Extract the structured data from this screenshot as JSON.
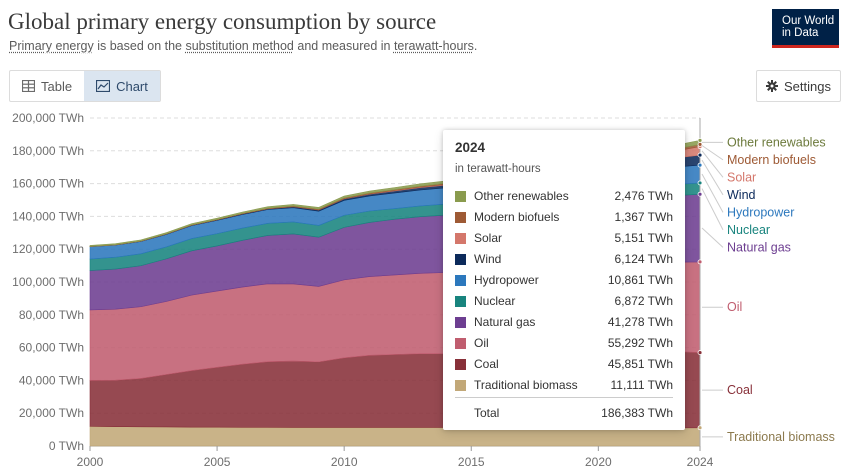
{
  "header": {
    "title": "Global primary energy consumption by source",
    "subtitle_pre": "",
    "subtitle_link1": "Primary energy",
    "subtitle_mid1": " is based on the ",
    "subtitle_link2": "substitution method",
    "subtitle_mid2": " and measured in ",
    "subtitle_link3": "terawatt-hours",
    "subtitle_end": "."
  },
  "logo": {
    "line1": "Our World",
    "line2": "in Data"
  },
  "tabs": [
    {
      "label": "Table",
      "icon": "table-icon",
      "active": false
    },
    {
      "label": "Chart",
      "icon": "chart-icon",
      "active": true
    }
  ],
  "settings": {
    "label": "Settings",
    "icon": "gear-icon"
  },
  "tooltip": {
    "year": "2024",
    "unit": "in terawatt-hours",
    "rows": [
      {
        "name": "Other renewables",
        "value": "2,476 TWh"
      },
      {
        "name": "Modern biofuels",
        "value": "1,367 TWh"
      },
      {
        "name": "Solar",
        "value": "5,151 TWh"
      },
      {
        "name": "Wind",
        "value": "6,124 TWh"
      },
      {
        "name": "Hydropower",
        "value": "10,861 TWh"
      },
      {
        "name": "Nuclear",
        "value": "6,872 TWh"
      },
      {
        "name": "Natural gas",
        "value": "41,278 TWh"
      },
      {
        "name": "Oil",
        "value": "55,292 TWh"
      },
      {
        "name": "Coal",
        "value": "45,851 TWh"
      },
      {
        "name": "Traditional biomass",
        "value": "11,111 TWh"
      }
    ],
    "total_label": "Total",
    "total_value": "186,383 TWh"
  },
  "chart_data": {
    "type": "area",
    "stacked": true,
    "y_unit": " TWh",
    "ylim": [
      0,
      200000
    ],
    "yticks": [
      0,
      20000,
      40000,
      60000,
      80000,
      100000,
      120000,
      140000,
      160000,
      180000,
      200000
    ],
    "ytick_labels": [
      "0 TWh",
      "20,000 TWh",
      "40,000 TWh",
      "60,000 TWh",
      "80,000 TWh",
      "100,000 TWh",
      "120,000 TWh",
      "140,000 TWh",
      "160,000 TWh",
      "180,000 TWh",
      "200,000 TWh"
    ],
    "xlim": [
      2000,
      2024
    ],
    "xticks": [
      2000,
      2005,
      2010,
      2015,
      2020,
      2024
    ],
    "x": [
      2000,
      2001,
      2002,
      2003,
      2004,
      2005,
      2006,
      2007,
      2008,
      2009,
      2010,
      2011,
      2012,
      2013,
      2014,
      2015,
      2016,
      2017,
      2018,
      2019,
      2020,
      2021,
      2022,
      2023,
      2024
    ],
    "grid": true,
    "legend_position": "right",
    "series": [
      {
        "name": "Traditional biomass",
        "color": "#c2a878",
        "label_color": "#8c7a4e",
        "values": [
          12000,
          11800,
          11700,
          11600,
          11500,
          11500,
          11400,
          11400,
          11300,
          11300,
          11300,
          11300,
          11300,
          11300,
          11300,
          11300,
          11300,
          11300,
          11300,
          11200,
          11200,
          11200,
          11100,
          11100,
          11111
        ]
      },
      {
        "name": "Coal",
        "color": "#883039",
        "label_color": "#883039",
        "values": [
          28000,
          28300,
          29500,
          32000,
          34500,
          36500,
          38500,
          40000,
          40500,
          40000,
          42500,
          44000,
          44500,
          45000,
          45000,
          44500,
          43700,
          43500,
          44500,
          44000,
          43000,
          45000,
          45500,
          46500,
          45851
        ]
      },
      {
        "name": "Oil",
        "color": "#c05d6f",
        "label_color": "#c05d6f",
        "values": [
          43000,
          43300,
          43700,
          44500,
          46000,
          46500,
          47000,
          47500,
          47000,
          46000,
          47500,
          48000,
          48500,
          49000,
          49500,
          50500,
          51500,
          52000,
          52500,
          52500,
          48000,
          51500,
          53000,
          54500,
          55292
        ]
      },
      {
        "name": "Natural gas",
        "color": "#6d3e91",
        "label_color": "#6d3e91",
        "values": [
          24000,
          24500,
          25000,
          26000,
          27000,
          27500,
          28500,
          29500,
          30500,
          30000,
          32000,
          33000,
          34000,
          34500,
          35000,
          35500,
          36000,
          37000,
          38500,
          39500,
          39000,
          40500,
          40000,
          40500,
          41278
        ]
      },
      {
        "name": "Nuclear",
        "color": "#18847e",
        "label_color": "#18847e",
        "values": [
          7000,
          7200,
          7300,
          7300,
          7500,
          7500,
          7500,
          7400,
          7300,
          7200,
          7400,
          7000,
          6500,
          6600,
          6700,
          6800,
          6900,
          6950,
          7050,
          7200,
          7000,
          7100,
          6800,
          6850,
          6872
        ]
      },
      {
        "name": "Hydropower",
        "color": "#2c78bd",
        "label_color": "#2c78bd",
        "values": [
          7500,
          7400,
          7500,
          7600,
          7900,
          8100,
          8300,
          8400,
          8700,
          8700,
          9100,
          9200,
          9500,
          9700,
          9900,
          10000,
          10200,
          10300,
          10500,
          10500,
          10800,
          10700,
          10700,
          10600,
          10861
        ]
      },
      {
        "name": "Wind",
        "color": "#0c2a5b",
        "label_color": "#0c2a5b",
        "values": [
          90,
          110,
          150,
          180,
          220,
          280,
          350,
          450,
          580,
          720,
          880,
          1060,
          1250,
          1460,
          1660,
          1920,
          2180,
          2520,
          2780,
          3040,
          3380,
          4100,
          4700,
          5400,
          6124
        ]
      },
      {
        "name": "Solar",
        "color": "#d4776b",
        "label_color": "#d4776b",
        "values": [
          3,
          4,
          5,
          6,
          7,
          10,
          13,
          20,
          30,
          50,
          80,
          150,
          240,
          330,
          440,
          570,
          750,
          1050,
          1430,
          1830,
          2230,
          2770,
          3380,
          4300,
          5151
        ]
      },
      {
        "name": "Modern biofuels",
        "color": "#9e5a35",
        "label_color": "#9e5a35",
        "values": [
          120,
          130,
          150,
          170,
          200,
          230,
          280,
          360,
          440,
          490,
          550,
          580,
          590,
          630,
          690,
          700,
          730,
          780,
          840,
          900,
          860,
          940,
          1050,
          1200,
          1367
        ]
      },
      {
        "name": "Other renewables",
        "color": "#8a9b4e",
        "label_color": "#6c7a3c",
        "values": [
          600,
          640,
          680,
          720,
          760,
          800,
          840,
          890,
          950,
          1000,
          1070,
          1150,
          1240,
          1330,
          1420,
          1500,
          1590,
          1680,
          1780,
          1880,
          1950,
          2050,
          2180,
          2330,
          2476
        ]
      }
    ]
  }
}
